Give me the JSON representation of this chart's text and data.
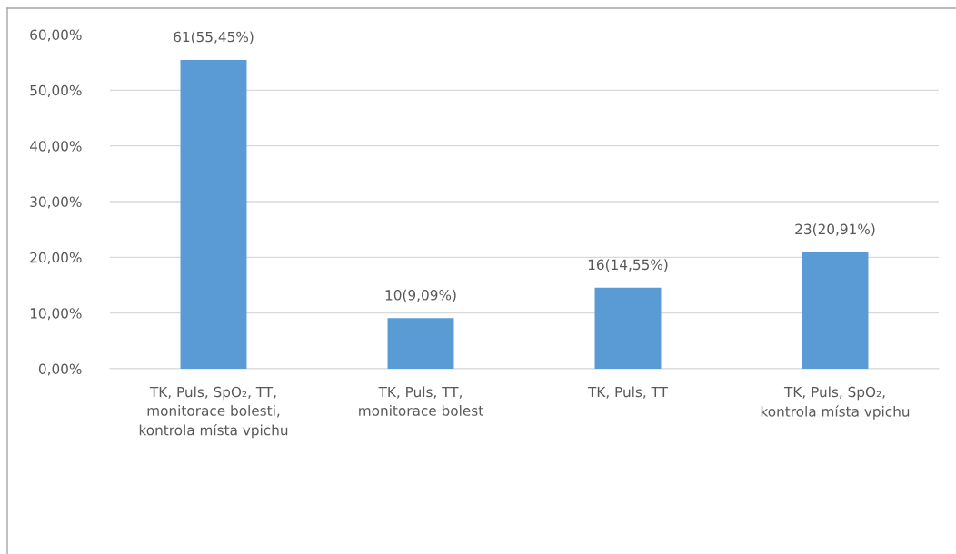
{
  "chart_data": {
    "type": "bar",
    "categories": [
      "TK, Puls, SpO₂, TT,\nmonitorace bolesti,\nkontrola místa vpichu",
      "TK, Puls, TT,\nmonitorace bolest",
      "TK, Puls, TT",
      "TK, Puls, SpO₂,\nkontrola místa vpichu"
    ],
    "values": [
      55.45,
      9.09,
      14.55,
      20.91
    ],
    "color": "#5b9bd5",
    "value_labels": [
      "61(55,45%)",
      "10(9,09%)",
      "16(14,55%)",
      "23(20,91%)"
    ],
    "ylim": [
      0,
      60
    ],
    "yticks": [
      {
        "value": 0,
        "label": "0,00%"
      },
      {
        "value": 10,
        "label": "10,00%"
      },
      {
        "value": 20,
        "label": "20,00%"
      },
      {
        "value": 30,
        "label": "30,00%"
      },
      {
        "value": 40,
        "label": "40,00%"
      },
      {
        "value": 50,
        "label": "50,00%"
      },
      {
        "value": 60,
        "label": "60,00%"
      }
    ],
    "grid": "y",
    "legend": false
  }
}
